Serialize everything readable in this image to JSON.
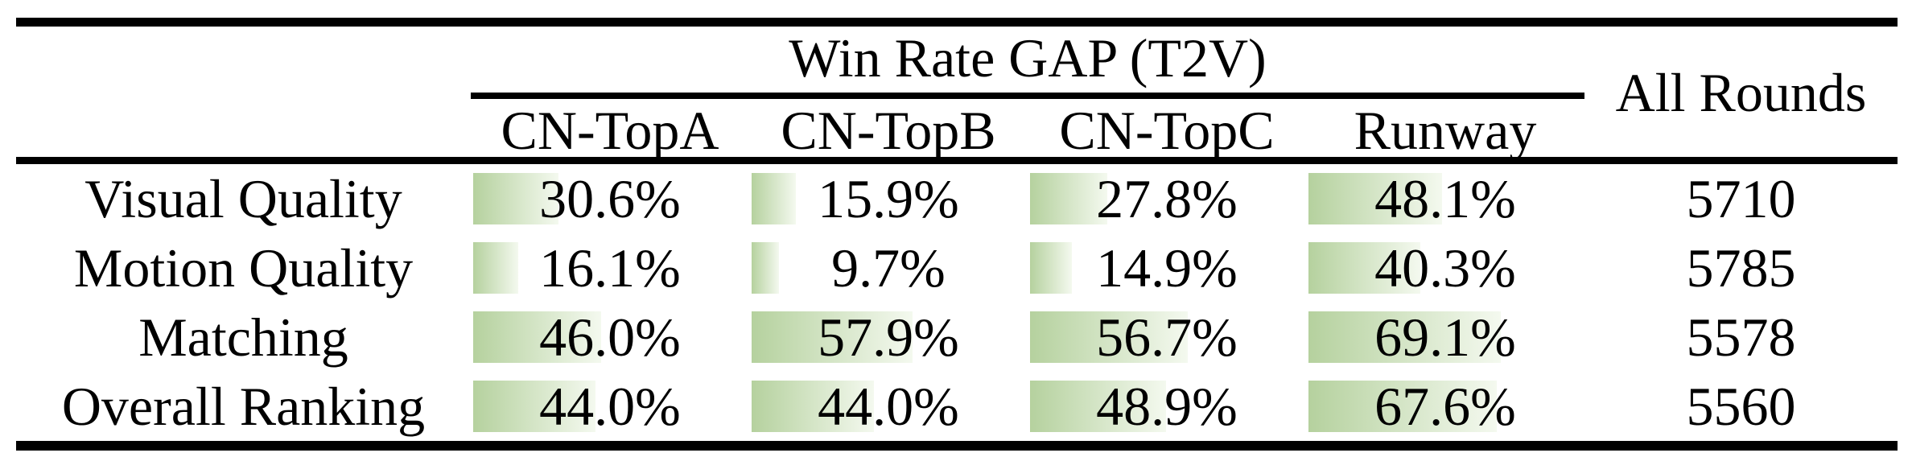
{
  "table": {
    "group_header": "Win Rate GAP (T2V)",
    "all_rounds_header": "All Rounds",
    "columns": [
      "CN-TopA",
      "CN-TopB",
      "CN-TopC",
      "Runway"
    ],
    "rows": [
      {
        "label": "Visual Quality",
        "cells": [
          {
            "text": "30.6%",
            "pct": 30.6
          },
          {
            "text": "15.9%",
            "pct": 15.9
          },
          {
            "text": "27.8%",
            "pct": 27.8
          },
          {
            "text": "48.1%",
            "pct": 48.1
          }
        ],
        "all_rounds": "5710"
      },
      {
        "label": "Motion Quality",
        "cells": [
          {
            "text": "16.1%",
            "pct": 16.1
          },
          {
            "text": "9.7%",
            "pct": 9.7
          },
          {
            "text": "14.9%",
            "pct": 14.9
          },
          {
            "text": "40.3%",
            "pct": 40.3
          }
        ],
        "all_rounds": "5785"
      },
      {
        "label": "Matching",
        "cells": [
          {
            "text": "46.0%",
            "pct": 46.0
          },
          {
            "text": "57.9%",
            "pct": 57.9
          },
          {
            "text": "56.7%",
            "pct": 56.7
          },
          {
            "text": "69.1%",
            "pct": 69.1
          }
        ],
        "all_rounds": "5578"
      },
      {
        "label": "Overall Ranking",
        "cells": [
          {
            "text": "44.0%",
            "pct": 44.0
          },
          {
            "text": "44.0%",
            "pct": 44.0
          },
          {
            "text": "48.9%",
            "pct": 48.9
          },
          {
            "text": "67.6%",
            "pct": 67.6
          }
        ],
        "all_rounds": "5560"
      }
    ],
    "colors": {
      "bar_gradient_from": "#b5d19e",
      "bar_gradient_to": "#f4f9ef",
      "rule": "#000000",
      "text": "#000000"
    }
  },
  "chart_data": {
    "type": "table",
    "title": "Win Rate GAP (T2V)",
    "categories": [
      "CN-TopA",
      "CN-TopB",
      "CN-TopC",
      "Runway"
    ],
    "series": [
      {
        "name": "Visual Quality",
        "values": [
          30.6,
          15.9,
          27.8,
          48.1
        ],
        "all_rounds": 5710
      },
      {
        "name": "Motion Quality",
        "values": [
          16.1,
          9.7,
          14.9,
          40.3
        ],
        "all_rounds": 5785
      },
      {
        "name": "Matching",
        "values": [
          46.0,
          57.9,
          56.7,
          69.1
        ],
        "all_rounds": 5578
      },
      {
        "name": "Overall Ranking",
        "values": [
          44.0,
          44.0,
          48.9,
          67.6
        ],
        "all_rounds": 5560
      }
    ],
    "extra_column": {
      "header": "All Rounds",
      "values": [
        5710,
        5785,
        5578,
        5560
      ]
    },
    "bar_scale": [
      0,
      100
    ],
    "bar_color": "#b5d19e",
    "layout": "data bars fill cell proportionally to percentage, fading green to white left-to-right"
  }
}
